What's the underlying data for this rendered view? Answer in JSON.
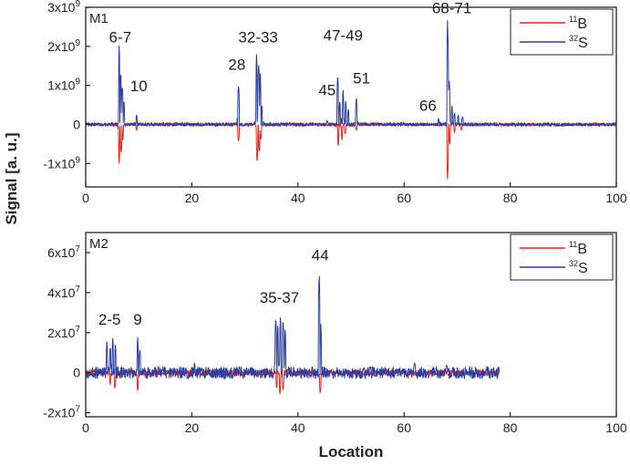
{
  "chart_data": [
    {
      "type": "line",
      "panel_label": "M1",
      "xlim": [
        0,
        100
      ],
      "ylim": [
        -1600000000.0,
        3000000000.0
      ],
      "x_ticks": [
        0,
        20,
        40,
        60,
        80,
        100
      ],
      "x_tick_labels": [
        "0",
        "20",
        "40",
        "60",
        "80",
        "100"
      ],
      "y_ticks": [
        -1000000000.0,
        0,
        1000000000.0,
        2000000000.0,
        3000000000.0
      ],
      "y_tick_labels": [
        {
          "base": "-1x10",
          "exp": "9"
        },
        {
          "base": "0",
          "exp": ""
        },
        {
          "base": "1x10",
          "exp": "9"
        },
        {
          "base": "2x10",
          "exp": "9"
        },
        {
          "base": "3x10",
          "exp": "9"
        }
      ],
      "x_end": 100,
      "legend": {
        "placement": "top-right",
        "entries": [
          {
            "mass": "11",
            "element": "B",
            "color": "#e8251f"
          },
          {
            "mass": "32",
            "element": "S",
            "color": "#2c3ea0"
          }
        ]
      },
      "series": [
        {
          "name": "11B",
          "color": "#e8251f",
          "noise": 40000000.0,
          "peaks": [
            [
              6.3,
              -1000000000.0
            ],
            [
              6.7,
              -750000000.0
            ],
            [
              7.0,
              -400000000.0
            ],
            [
              9.6,
              -150000000.0
            ],
            [
              28.8,
              -450000000.0
            ],
            [
              32.3,
              -950000000.0
            ],
            [
              32.7,
              -700000000.0
            ],
            [
              33.0,
              -400000000.0
            ],
            [
              47.6,
              -550000000.0
            ],
            [
              48.3,
              -400000000.0
            ],
            [
              48.9,
              -250000000.0
            ],
            [
              51.0,
              -150000000.0
            ],
            [
              68.2,
              -1450000000.0
            ],
            [
              68.6,
              -500000000.0
            ],
            [
              69.5,
              -200000000.0
            ],
            [
              70.8,
              -150000000.0
            ]
          ]
        },
        {
          "name": "32S",
          "color": "#2c3ea0",
          "noise": 40000000.0,
          "peaks": [
            [
              6.3,
              1900000000.0
            ],
            [
              6.6,
              1300000000.0
            ],
            [
              6.9,
              1000000000.0
            ],
            [
              7.2,
              600000000.0
            ],
            [
              9.6,
              250000000.0
            ],
            [
              28.8,
              1050000000.0
            ],
            [
              32.2,
              1800000000.0
            ],
            [
              32.6,
              1600000000.0
            ],
            [
              32.9,
              1300000000.0
            ],
            [
              33.2,
              500000000.0
            ],
            [
              45.5,
              100000000.0
            ],
            [
              47.5,
              1300000000.0
            ],
            [
              47.9,
              600000000.0
            ],
            [
              48.5,
              900000000.0
            ],
            [
              49.0,
              600000000.0
            ],
            [
              49.5,
              400000000.0
            ],
            [
              51.0,
              700000000.0
            ],
            [
              66.5,
              150000000.0
            ],
            [
              68.2,
              2700000000.0
            ],
            [
              68.5,
              1200000000.0
            ],
            [
              69.0,
              500000000.0
            ],
            [
              69.5,
              300000000.0
            ],
            [
              70.2,
              250000000.0
            ],
            [
              71.0,
              200000000.0
            ]
          ]
        }
      ],
      "annotations": [
        {
          "text": "6-7",
          "x": 6.5,
          "y": 2100000000.0
        },
        {
          "text": "10",
          "x": 10.0,
          "y": 850000000.0
        },
        {
          "text": "28",
          "x": 28.5,
          "y": 1400000000.0
        },
        {
          "text": "32-33",
          "x": 32.5,
          "y": 2100000000.0
        },
        {
          "text": "47-49",
          "x": 48.5,
          "y": 2150000000.0
        },
        {
          "text": "45",
          "x": 45.5,
          "y": 750000000.0
        },
        {
          "text": "51",
          "x": 52.0,
          "y": 1050000000.0
        },
        {
          "text": "66",
          "x": 64.5,
          "y": 350000000.0
        },
        {
          "text": "68-71",
          "x": 69.0,
          "y": 2850000000.0
        }
      ]
    },
    {
      "type": "line",
      "panel_label": "M2",
      "xlim": [
        0,
        100
      ],
      "ylim": [
        -22000000.0,
        70000000.0
      ],
      "x_ticks": [
        0,
        20,
        40,
        60,
        80,
        100
      ],
      "x_tick_labels": [
        "0",
        "20",
        "40",
        "60",
        "80",
        "100"
      ],
      "y_ticks": [
        -20000000.0,
        0,
        20000000.0,
        40000000.0,
        60000000.0
      ],
      "y_tick_labels": [
        {
          "base": "-2x10",
          "exp": "7"
        },
        {
          "base": "0",
          "exp": ""
        },
        {
          "base": "2x10",
          "exp": "7"
        },
        {
          "base": "4x10",
          "exp": "7"
        },
        {
          "base": "6x10",
          "exp": "7"
        }
      ],
      "x_end": 78,
      "legend": {
        "placement": "top-right",
        "entries": [
          {
            "mass": "11",
            "element": "B",
            "color": "#e8251f"
          },
          {
            "mass": "32",
            "element": "S",
            "color": "#2c3ea0"
          }
        ]
      },
      "series": [
        {
          "name": "11B",
          "color": "#e8251f",
          "noise": 1500000.0,
          "peaks": [
            [
              4.6,
              -6000000.0
            ],
            [
              5.5,
              -8000000.0
            ],
            [
              9.8,
              -9000000.0
            ],
            [
              36.0,
              -8000000.0
            ],
            [
              36.6,
              -11000000.0
            ],
            [
              37.2,
              -9000000.0
            ],
            [
              44.2,
              -10500000.0
            ]
          ]
        },
        {
          "name": "32S",
          "color": "#2c3ea0",
          "noise": 3000000.0,
          "peaks": [
            [
              4.0,
              16000000.0
            ],
            [
              4.6,
              13000000.0
            ],
            [
              5.1,
              17000000.0
            ],
            [
              5.6,
              14000000.0
            ],
            [
              9.8,
              17500000.0
            ],
            [
              10.2,
              12000000.0
            ],
            [
              35.8,
              28000000.0
            ],
            [
              36.2,
              24000000.0
            ],
            [
              36.7,
              29000000.0
            ],
            [
              37.2,
              27000000.0
            ],
            [
              37.6,
              22000000.0
            ],
            [
              44.0,
              50000000.0
            ],
            [
              44.3,
              25000000.0
            ],
            [
              20.5,
              5000000.0
            ],
            [
              62.0,
              5000000.0
            ],
            [
              68.0,
              4000000.0
            ]
          ]
        }
      ],
      "annotations": [
        {
          "text": "2-5",
          "x": 4.5,
          "y": 24000000.0
        },
        {
          "text": "9",
          "x": 9.8,
          "y": 24000000.0
        },
        {
          "text": "35-37",
          "x": 36.5,
          "y": 35000000.0
        },
        {
          "text": "44",
          "x": 44.2,
          "y": 56000000.0
        }
      ]
    }
  ],
  "axes": {
    "ylabel": "Signal [a. u.]",
    "xlabel": "Location"
  }
}
